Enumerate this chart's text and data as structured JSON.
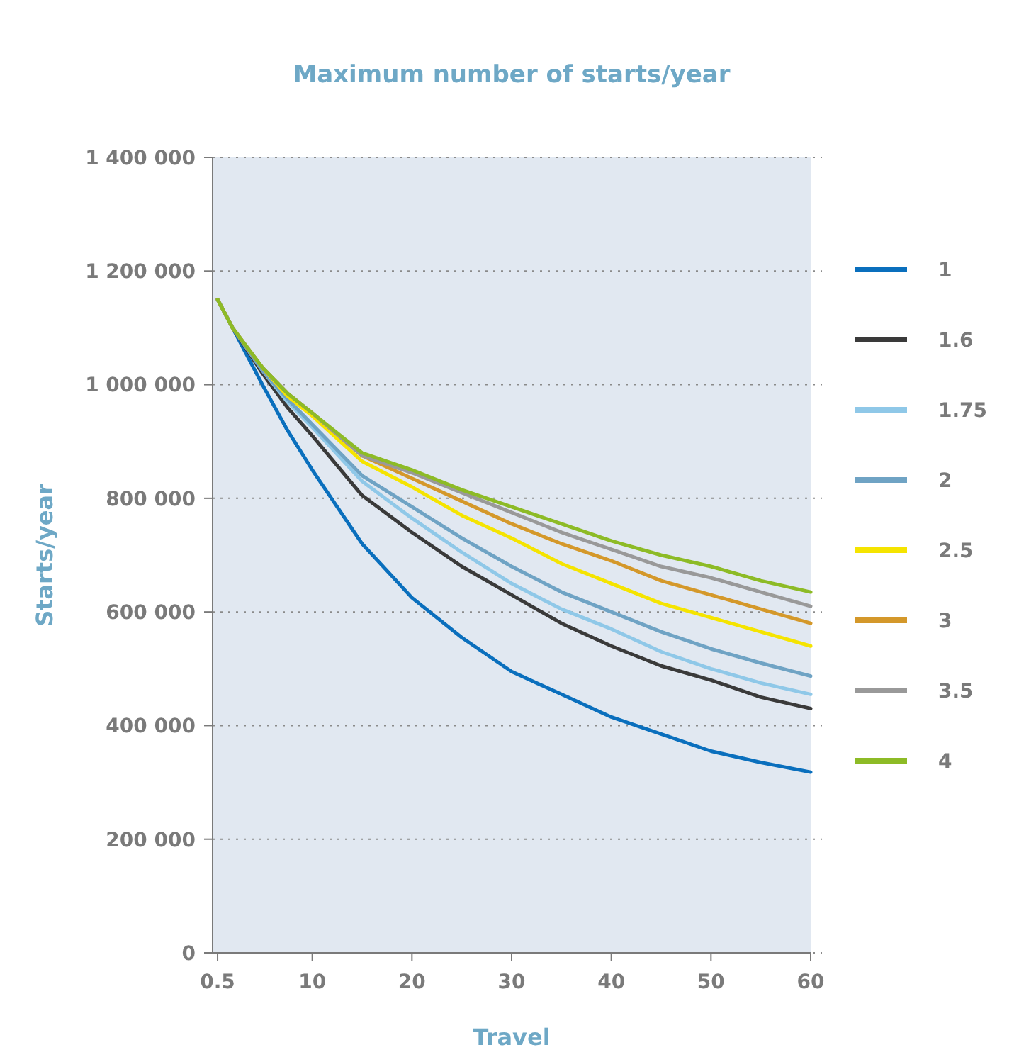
{
  "chart_data": {
    "type": "line",
    "title": "Maximum number of starts/year",
    "xlabel": "Travel",
    "ylabel": "Starts/year",
    "x": [
      0.5,
      2,
      5,
      7.5,
      10,
      15,
      20,
      25,
      30,
      35,
      40,
      45,
      50,
      55,
      60
    ],
    "xlim": [
      0,
      60
    ],
    "xticks": [
      0.5,
      10,
      20,
      30,
      40,
      50,
      60
    ],
    "ylim": [
      0,
      1400000
    ],
    "yticks": [
      0,
      {
        "value": 200000,
        "label": "200 000"
      },
      {
        "value": 400000,
        "label": "400 000"
      },
      {
        "value": 600000,
        "label": "600 000"
      },
      {
        "value": 800000,
        "label": "800 000"
      },
      {
        "value": 1000000,
        "label": "1 000 000"
      },
      {
        "value": 1200000,
        "label": "1 200 000"
      },
      {
        "value": 1400000,
        "label": "1 400 000"
      }
    ],
    "grid": "y",
    "legend": "right",
    "marker": "none",
    "line_style": "solid",
    "series": [
      {
        "name": "1",
        "color": "#0a6fbd",
        "values": [
          1150000,
          1100000,
          1000000,
          920000,
          850000,
          720000,
          625000,
          555000,
          495000,
          455000,
          415000,
          385000,
          355000,
          335000,
          318000
        ]
      },
      {
        "name": "1.6",
        "color": "#3a3a3a",
        "values": [
          1150000,
          1100000,
          1020000,
          960000,
          910000,
          805000,
          740000,
          680000,
          630000,
          580000,
          540000,
          505000,
          480000,
          450000,
          430000
        ]
      },
      {
        "name": "1.75",
        "color": "#8fc8e8",
        "values": [
          1150000,
          1100000,
          1025000,
          970000,
          925000,
          830000,
          765000,
          705000,
          650000,
          605000,
          570000,
          530000,
          500000,
          475000,
          455000
        ]
      },
      {
        "name": "2",
        "color": "#6fa3c4",
        "values": [
          1150000,
          1100000,
          1025000,
          975000,
          930000,
          840000,
          785000,
          730000,
          680000,
          635000,
          600000,
          565000,
          535000,
          510000,
          487000
        ]
      },
      {
        "name": "2.5",
        "color": "#f5e400",
        "values": [
          1150000,
          1100000,
          1030000,
          980000,
          945000,
          865000,
          820000,
          770000,
          730000,
          685000,
          650000,
          615000,
          590000,
          565000,
          540000
        ]
      },
      {
        "name": "3",
        "color": "#d4982a",
        "values": [
          1150000,
          1100000,
          1030000,
          985000,
          950000,
          875000,
          835000,
          795000,
          755000,
          720000,
          690000,
          655000,
          630000,
          605000,
          580000
        ]
      },
      {
        "name": "3.5",
        "color": "#999999",
        "values": [
          1150000,
          1100000,
          1030000,
          985000,
          950000,
          875000,
          845000,
          810000,
          775000,
          740000,
          710000,
          680000,
          660000,
          635000,
          610000
        ]
      },
      {
        "name": "4",
        "color": "#8dbb26",
        "values": [
          1150000,
          1100000,
          1030000,
          985000,
          950000,
          880000,
          850000,
          815000,
          785000,
          755000,
          725000,
          700000,
          680000,
          655000,
          635000
        ]
      }
    ]
  }
}
